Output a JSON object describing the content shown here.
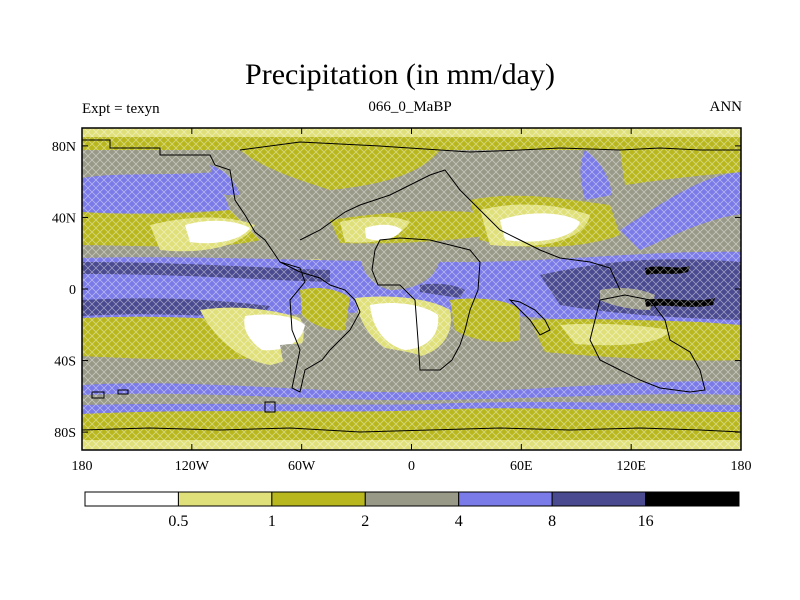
{
  "title": "Precipitation (in mm/day)",
  "left_label": "Expt = texyn",
  "center_label": "066_0_MaBP",
  "right_label": "ANN",
  "x_ticks": [
    "180",
    "120W",
    "60W",
    "0",
    "60E",
    "120E",
    "180"
  ],
  "y_ticks": [
    "80N",
    "40N",
    "0",
    "40S",
    "80S"
  ],
  "colorbar": {
    "levels": [
      "0.5",
      "1",
      "2",
      "4",
      "8",
      "16"
    ],
    "colors": [
      "#ffffff",
      "#e0e07a",
      "#b8b81e",
      "#999988",
      "#7a7ae8",
      "#4a4a90",
      "#000000"
    ]
  },
  "colors": {
    "white": "#ffffff",
    "light_yellow": "#e0e07a",
    "olive": "#b8b81e",
    "gray": "#999988",
    "light_blue": "#7a7ae8",
    "dark_blue": "#4a4a90",
    "black": "#000000"
  }
}
